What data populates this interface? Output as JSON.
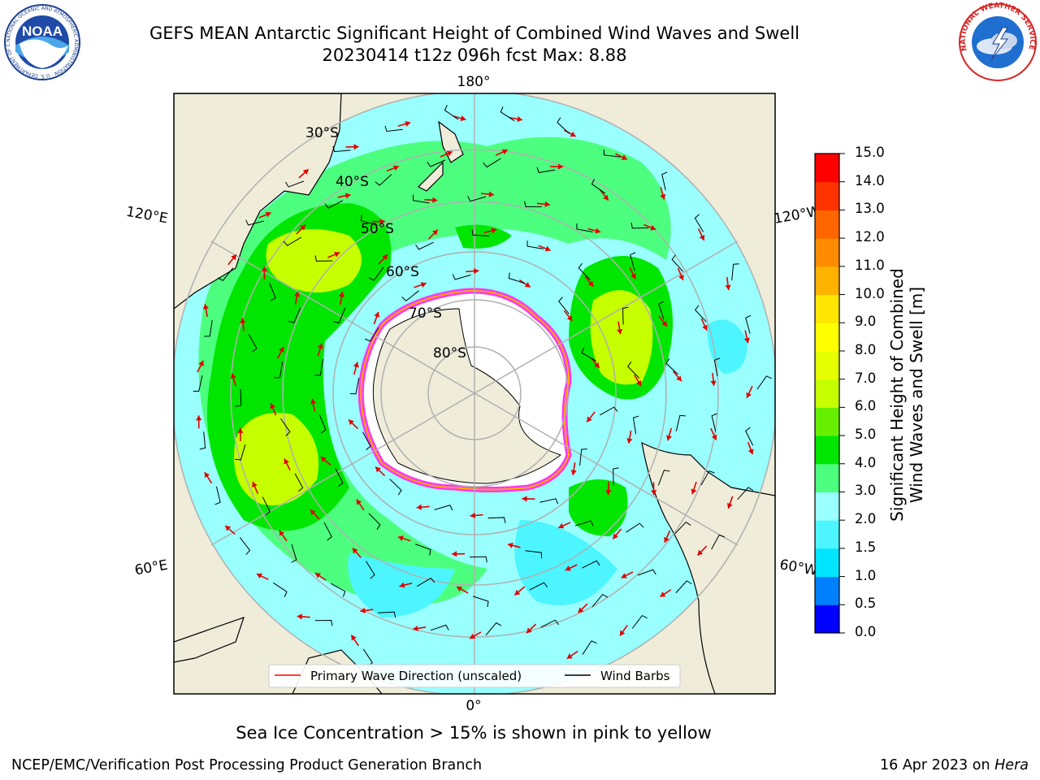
{
  "header": {
    "title_line1": "GEFS MEAN Antarctic Significant Height of Combined Wind Waves and Swell",
    "title_line2": "20230414 t12z 096h fcst   Max: 8.88",
    "left_logo_text": "NOAA",
    "left_logo_ring": "NATIONAL OCEANIC AND ATMOSPHERIC ADMINISTRATION · U.S. DEPARTMENT OF COMMERCE",
    "right_logo_ring": "NATIONAL WEATHER SERVICE"
  },
  "map": {
    "projection": "south-polar-stereographic",
    "lat_labels": [
      "30°S",
      "40°S",
      "50°S",
      "60°S",
      "70°S",
      "80°S"
    ],
    "lon_labels": {
      "top": "180°",
      "bottom": "0°",
      "upper_left": "120°E",
      "lower_left": "60°E",
      "upper_right": "120°W",
      "lower_right": "60°W"
    },
    "legend": {
      "wave_label": "Primary Wave Direction (unscaled)",
      "wind_label": "Wind Barbs",
      "wave_color": "#ff0000",
      "wind_color": "#000000"
    },
    "colors": {
      "land": "#efedda",
      "ice_interior": "#ffffff",
      "ice_edge": [
        "#ff33ff",
        "#ffaa00",
        "#ffff00"
      ]
    }
  },
  "colorbar": {
    "label_line1": "Significant Height of Combined",
    "label_line2": "Wind Waves and Swell [m]",
    "ticks": [
      "0.0",
      "0.5",
      "1.0",
      "1.5",
      "2.0",
      "3.0",
      "4.0",
      "5.0",
      "6.0",
      "7.0",
      "8.0",
      "9.0",
      "10.0",
      "11.0",
      "12.0",
      "13.0",
      "14.0",
      "15.0"
    ],
    "levels": [
      0.0,
      0.5,
      1.0,
      1.5,
      2.0,
      3.0,
      4.0,
      5.0,
      6.0,
      7.0,
      8.0,
      9.0,
      10.0,
      11.0,
      12.0,
      13.0,
      14.0,
      15.0
    ],
    "colors": [
      "#0000ff",
      "#0080ff",
      "#00e5ff",
      "#4cf5ff",
      "#99ffff",
      "#4dff7f",
      "#00e600",
      "#66f000",
      "#c6ff00",
      "#e6ff00",
      "#ffff00",
      "#ffe600",
      "#ffb300",
      "#ff8c00",
      "#ff6600",
      "#ff3300",
      "#ff0000"
    ]
  },
  "caption": "Sea Ice Concentration > 15% is shown in pink to yellow",
  "footer": {
    "left": "NCEP/EMC/Verification Post Processing Product Generation Branch",
    "date": "16 Apr 2023 on",
    "host": "Hera"
  }
}
